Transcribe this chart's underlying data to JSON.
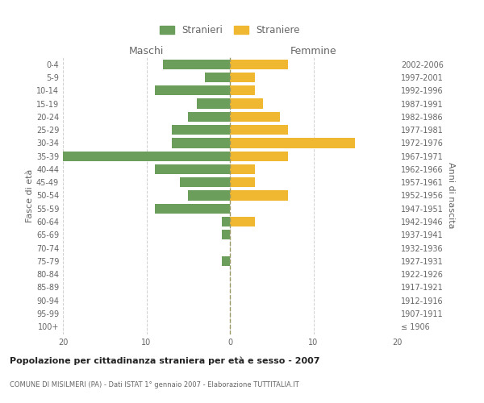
{
  "age_groups": [
    "100+",
    "95-99",
    "90-94",
    "85-89",
    "80-84",
    "75-79",
    "70-74",
    "65-69",
    "60-64",
    "55-59",
    "50-54",
    "45-49",
    "40-44",
    "35-39",
    "30-34",
    "25-29",
    "20-24",
    "15-19",
    "10-14",
    "5-9",
    "0-4"
  ],
  "birth_years": [
    "≤ 1906",
    "1907-1911",
    "1912-1916",
    "1917-1921",
    "1922-1926",
    "1927-1931",
    "1932-1936",
    "1937-1941",
    "1942-1946",
    "1947-1951",
    "1952-1956",
    "1957-1961",
    "1962-1966",
    "1967-1971",
    "1972-1976",
    "1977-1981",
    "1982-1986",
    "1987-1991",
    "1992-1996",
    "1997-2001",
    "2002-2006"
  ],
  "maschi_values": [
    0,
    0,
    0,
    0,
    0,
    1,
    0,
    1,
    1,
    9,
    5,
    6,
    9,
    21,
    7,
    7,
    5,
    4,
    9,
    3,
    8
  ],
  "femmine_values": [
    0,
    0,
    0,
    0,
    0,
    0,
    0,
    0,
    3,
    0,
    7,
    3,
    3,
    7,
    15,
    7,
    6,
    4,
    3,
    3,
    7
  ],
  "maschi_color": "#6a9e5a",
  "femmine_color": "#f0b830",
  "title": "Popolazione per cittadinanza straniera per età e sesso - 2007",
  "subtitle": "COMUNE DI MISILMERI (PA) - Dati ISTAT 1° gennaio 2007 - Elaborazione TUTTITALIA.IT",
  "xlabel_left": "Maschi",
  "xlabel_right": "Femmine",
  "ylabel_left": "Fasce di età",
  "ylabel_right": "Anni di nascita",
  "legend_maschi": "Stranieri",
  "legend_femmine": "Straniere",
  "xlim": 20,
  "background_color": "#ffffff",
  "grid_color": "#d0d0d0",
  "zeroline_color": "#999966",
  "text_color": "#666666"
}
